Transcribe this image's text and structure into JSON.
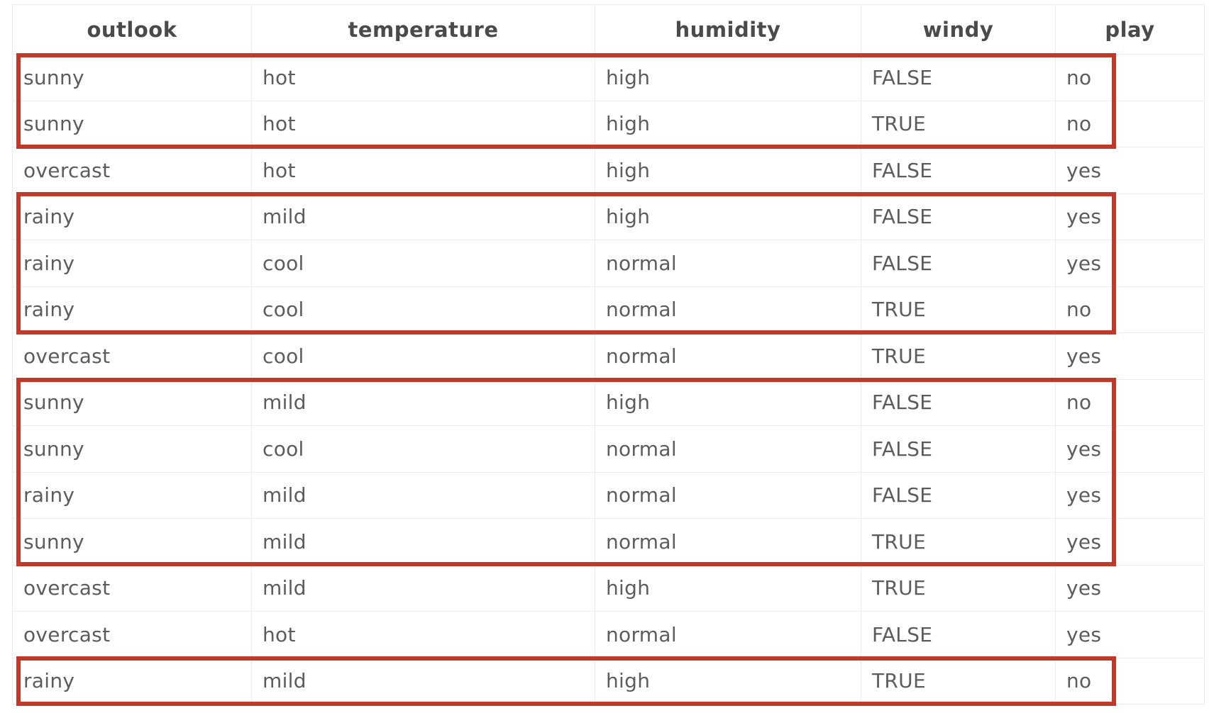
{
  "table": {
    "columns": [
      "outlook",
      "temperature",
      "humidity",
      "windy",
      "play"
    ],
    "rows": [
      [
        "sunny",
        "hot",
        "high",
        "FALSE",
        "no"
      ],
      [
        "sunny",
        "hot",
        "high",
        "TRUE",
        "no"
      ],
      [
        "overcast",
        "hot",
        "high",
        "FALSE",
        "yes"
      ],
      [
        "rainy",
        "mild",
        "high",
        "FALSE",
        "yes"
      ],
      [
        "rainy",
        "cool",
        "normal",
        "FALSE",
        "yes"
      ],
      [
        "rainy",
        "cool",
        "normal",
        "TRUE",
        "no"
      ],
      [
        "overcast",
        "cool",
        "normal",
        "TRUE",
        "yes"
      ],
      [
        "sunny",
        "mild",
        "high",
        "FALSE",
        "no"
      ],
      [
        "sunny",
        "cool",
        "normal",
        "FALSE",
        "yes"
      ],
      [
        "rainy",
        "mild",
        "normal",
        "FALSE",
        "yes"
      ],
      [
        "sunny",
        "mild",
        "normal",
        "TRUE",
        "yes"
      ],
      [
        "overcast",
        "mild",
        "high",
        "TRUE",
        "yes"
      ],
      [
        "overcast",
        "hot",
        "normal",
        "FALSE",
        "yes"
      ],
      [
        "rainy",
        "mild",
        "high",
        "TRUE",
        "no"
      ]
    ]
  },
  "highlight_groups": [
    {
      "rows": [
        1,
        2
      ]
    },
    {
      "rows": [
        4,
        5,
        6
      ]
    },
    {
      "rows": [
        8,
        9,
        10,
        11
      ]
    },
    {
      "rows": [
        14
      ]
    }
  ],
  "colors": {
    "highlight_border": "#c0392b",
    "header_text": "#4a4a4a",
    "cell_text": "#5c5c5c",
    "grid_line": "#ececec"
  }
}
